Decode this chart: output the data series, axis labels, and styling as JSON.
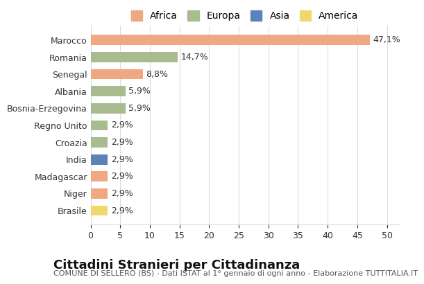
{
  "categories": [
    "Marocco",
    "Romania",
    "Senegal",
    "Albania",
    "Bosnia-Erzegovina",
    "Regno Unito",
    "Croazia",
    "India",
    "Madagascar",
    "Niger",
    "Brasile"
  ],
  "values": [
    47.1,
    14.7,
    8.8,
    5.9,
    5.9,
    2.9,
    2.9,
    2.9,
    2.9,
    2.9,
    2.9
  ],
  "labels": [
    "47,1%",
    "14,7%",
    "8,8%",
    "5,9%",
    "5,9%",
    "2,9%",
    "2,9%",
    "2,9%",
    "2,9%",
    "2,9%",
    "2,9%"
  ],
  "colors": [
    "#F0A882",
    "#A8BC8F",
    "#F0A882",
    "#A8BC8F",
    "#A8BC8F",
    "#A8BC8F",
    "#A8BC8F",
    "#6080B8",
    "#F0A882",
    "#F0A882",
    "#F0D870"
  ],
  "legend_labels": [
    "Africa",
    "Europa",
    "Asia",
    "America"
  ],
  "legend_colors": [
    "#F0A882",
    "#A8BC8F",
    "#6080B8",
    "#F0D870"
  ],
  "title": "Cittadini Stranieri per Cittadinanza",
  "subtitle": "COMUNE DI SELLERO (BS) - Dati ISTAT al 1° gennaio di ogni anno - Elaborazione TUTTITALIA.IT",
  "xlim": [
    0,
    52
  ],
  "xticks": [
    0,
    5,
    10,
    15,
    20,
    25,
    30,
    35,
    40,
    45,
    50
  ],
  "background_color": "#ffffff",
  "grid_color": "#dddddd",
  "bar_height": 0.6,
  "title_fontsize": 13,
  "subtitle_fontsize": 8,
  "label_fontsize": 9,
  "tick_fontsize": 9,
  "legend_fontsize": 10
}
